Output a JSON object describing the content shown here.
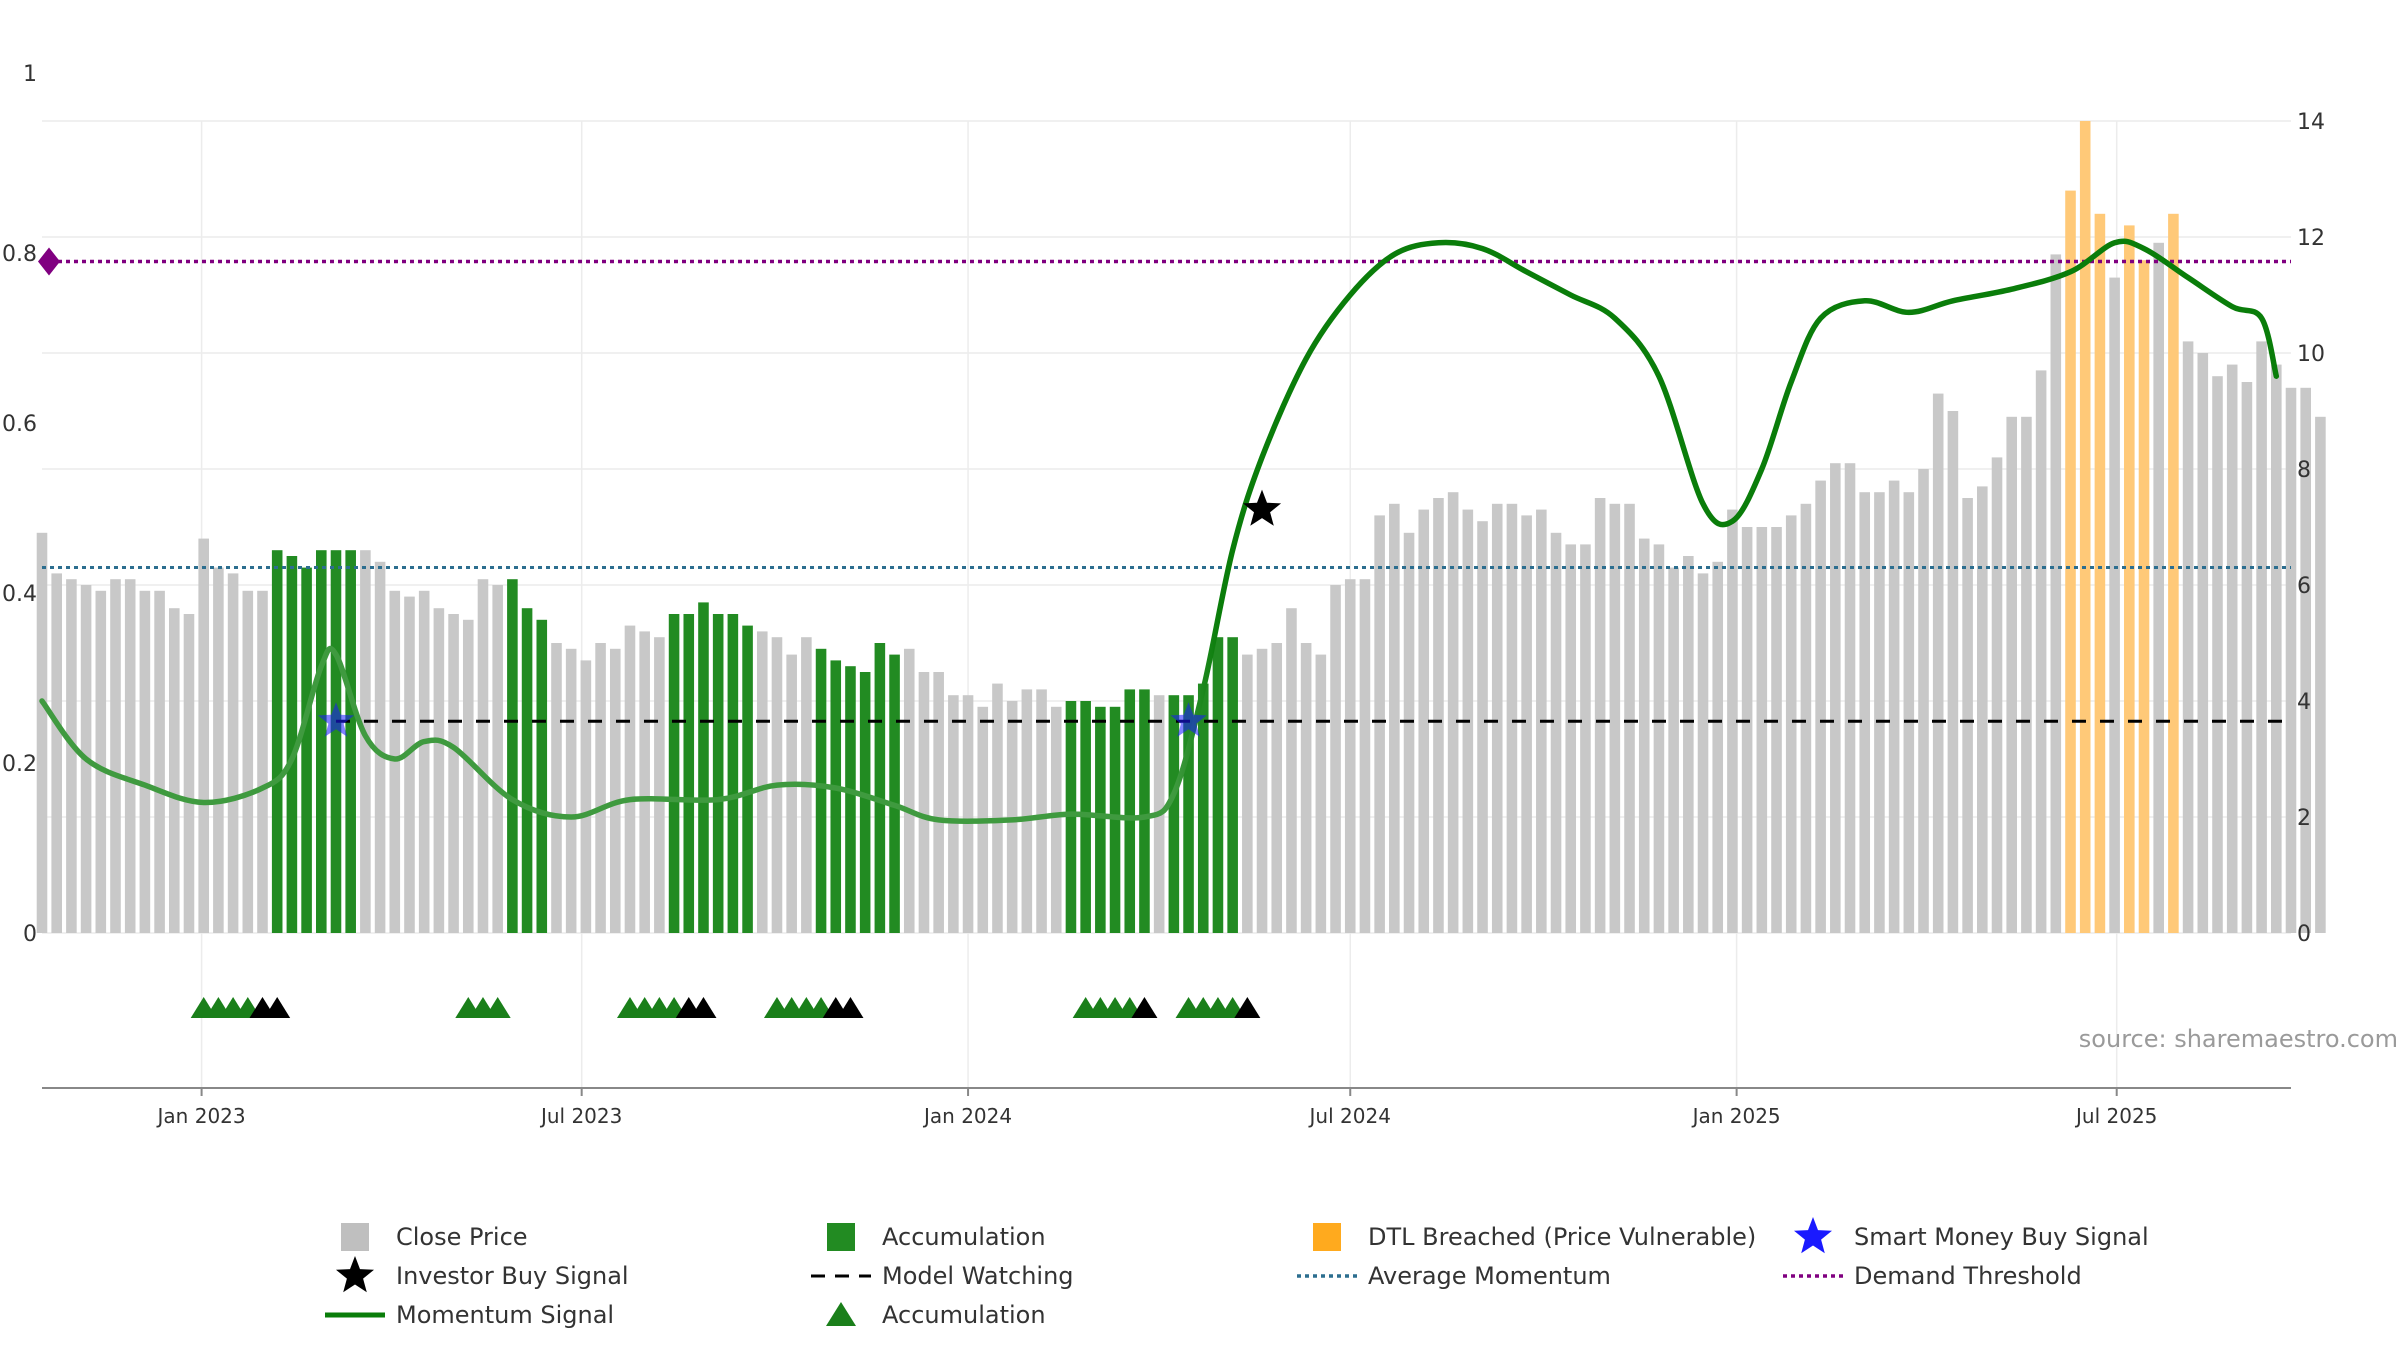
{
  "chart_data": {
    "type": "bar",
    "source_note": "source: sharemaestro.com",
    "x_axis": {
      "type": "date",
      "range": [
        "2022-10-17",
        "2025-09-22"
      ],
      "tick_labels": [
        "Jan 2023",
        "Jul 2023",
        "Jan 2024",
        "Jul 2024",
        "Jan 2025",
        "Jul 2025"
      ],
      "ticks": [
        "2023-01-01",
        "2023-07-01",
        "2024-01-01",
        "2024-07-01",
        "2025-01-01",
        "2025-07-01"
      ]
    },
    "left_axis": {
      "range": [
        0,
        1
      ],
      "tick_labels": [
        "0",
        "0.2",
        "0.4",
        "0.6",
        "0.8",
        "1"
      ]
    },
    "right_axis": {
      "range": [
        0,
        14
      ],
      "tick_labels": [
        "0",
        "2",
        "4",
        "6",
        "8",
        "10",
        "12",
        "14"
      ]
    },
    "grid": true,
    "legend_position": "bottom",
    "colors": {
      "close": "#c8c8c8",
      "accumulation": "#228b22",
      "dtl": "#ffc978",
      "momentum": "#0a7d0a",
      "average": "#2c6e8f",
      "threshold": "#800080",
      "smart_money": "#1a1aff",
      "investor": "#000000",
      "model_watching": "#000000",
      "acc_triangle": "#1a7f1a",
      "acc_triangle_black": "#000000"
    },
    "legend": [
      {
        "label": "Close Price",
        "marker": "square",
        "color": "#bfbfbf"
      },
      {
        "label": "Accumulation",
        "marker": "square",
        "color": "#228b22"
      },
      {
        "label": "DTL Breached (Price Vulnerable)",
        "marker": "square",
        "color": "#ffaa1e"
      },
      {
        "label": "Smart Money Buy Signal",
        "marker": "star",
        "color": "#1a1aff"
      },
      {
        "label": "Investor Buy Signal",
        "marker": "star",
        "color": "#000000"
      },
      {
        "label": "Model Watching",
        "marker": "dash",
        "color": "#000000"
      },
      {
        "label": "Average Momentum",
        "marker": "dot",
        "color": "#2c6e8f"
      },
      {
        "label": "Demand Threshold",
        "marker": "dot",
        "color": "#800080"
      },
      {
        "label": "Momentum Signal",
        "marker": "line",
        "color": "#0a7d0a"
      },
      {
        "label": "Accumulation",
        "marker": "triangle",
        "color": "#1a7f1a"
      }
    ],
    "series": [
      {
        "name": "Close Price",
        "axis": "right",
        "start_date": "2022-10-17",
        "step_days": 7,
        "values": [
          6.9,
          6.2,
          6.1,
          6.0,
          5.9,
          6.1,
          6.1,
          5.9,
          5.9,
          5.6,
          5.5,
          6.8,
          6.3,
          6.2,
          5.9,
          5.9,
          6.6,
          6.5,
          6.3,
          6.6,
          6.6,
          6.6,
          6.6,
          6.4,
          5.9,
          5.8,
          5.9,
          5.6,
          5.5,
          5.4,
          6.1,
          6.0,
          6.1,
          5.6,
          5.4,
          5.0,
          4.9,
          4.7,
          5.0,
          4.9,
          5.3,
          5.2,
          5.1,
          5.5,
          5.5,
          5.7,
          5.5,
          5.5,
          5.3,
          5.2,
          5.1,
          4.8,
          5.1,
          4.9,
          4.7,
          4.6,
          4.5,
          5.0,
          4.8,
          4.9,
          4.5,
          4.5,
          4.1,
          4.1,
          3.9,
          4.3,
          4.0,
          4.2,
          4.2,
          3.9,
          4.0,
          4.0,
          3.9,
          3.9,
          4.2,
          4.2,
          4.1,
          4.1,
          4.1,
          4.3,
          5.1,
          5.1,
          4.8,
          4.9,
          5.0,
          5.6,
          5.0,
          4.8,
          6.0,
          6.1,
          6.1,
          7.2,
          7.4,
          6.9,
          7.3,
          7.5,
          7.6,
          7.3,
          7.1,
          7.4,
          7.4,
          7.2,
          7.3,
          6.9,
          6.7,
          6.7,
          7.5,
          7.4,
          7.4,
          6.8,
          6.7,
          6.3,
          6.5,
          6.2,
          6.4,
          7.3,
          7.0,
          7.0,
          7.0,
          7.2,
          7.4,
          7.8,
          8.1,
          8.1,
          7.6,
          7.6,
          7.8,
          7.6,
          8.0,
          9.3,
          9.0,
          7.5,
          7.7,
          8.2,
          8.9,
          8.9,
          9.7,
          11.7,
          12.8,
          14.0,
          12.4,
          11.3,
          12.2,
          11.6,
          11.9,
          12.4,
          10.2,
          10.0,
          9.6,
          9.8,
          9.5,
          10.2,
          9.8,
          9.4,
          9.4,
          8.9
        ]
      },
      {
        "name": "Accumulation",
        "axis": "right",
        "ranges_inclusive_bar_index": [
          [
            16,
            21
          ],
          [
            32,
            34
          ],
          [
            43,
            48
          ],
          [
            53,
            58
          ],
          [
            70,
            75
          ],
          [
            77,
            81
          ]
        ]
      },
      {
        "name": "DTL Breached (Price Vulnerable)",
        "axis": "right",
        "ranges_inclusive_bar_index": [
          [
            138,
            140
          ],
          [
            142,
            143
          ],
          [
            145,
            145
          ]
        ]
      },
      {
        "name": "Momentum Signal",
        "axis": "right",
        "points": [
          [
            "2022-10-17",
            4.0
          ],
          [
            "2022-11-07",
            3.0
          ],
          [
            "2022-12-05",
            2.55
          ],
          [
            "2023-01-02",
            2.25
          ],
          [
            "2023-01-30",
            2.5
          ],
          [
            "2023-02-13",
            3.0
          ],
          [
            "2023-02-27",
            4.6
          ],
          [
            "2023-03-06",
            4.8
          ],
          [
            "2023-03-20",
            3.4
          ],
          [
            "2023-04-03",
            3.0
          ],
          [
            "2023-04-17",
            3.3
          ],
          [
            "2023-05-01",
            3.2
          ],
          [
            "2023-05-29",
            2.3
          ],
          [
            "2023-06-26",
            2.0
          ],
          [
            "2023-07-24",
            2.3
          ],
          [
            "2023-09-04",
            2.3
          ],
          [
            "2023-10-02",
            2.55
          ],
          [
            "2023-10-30",
            2.5
          ],
          [
            "2023-11-27",
            2.2
          ],
          [
            "2023-12-18",
            1.95
          ],
          [
            "2024-01-22",
            1.95
          ],
          [
            "2024-02-19",
            2.05
          ],
          [
            "2024-03-25",
            2.0
          ],
          [
            "2024-04-08",
            2.4
          ],
          [
            "2024-04-22",
            4.2
          ],
          [
            "2024-05-06",
            6.6
          ],
          [
            "2024-05-20",
            8.2
          ],
          [
            "2024-06-10",
            9.9
          ],
          [
            "2024-07-01",
            11.0
          ],
          [
            "2024-07-22",
            11.7
          ],
          [
            "2024-08-12",
            11.9
          ],
          [
            "2024-09-02",
            11.8
          ],
          [
            "2024-09-23",
            11.4
          ],
          [
            "2024-10-14",
            11.0
          ],
          [
            "2024-11-04",
            10.6
          ],
          [
            "2024-11-25",
            9.6
          ],
          [
            "2024-12-16",
            7.4
          ],
          [
            "2024-12-30",
            7.1
          ],
          [
            "2025-01-13",
            8.0
          ],
          [
            "2025-01-27",
            9.5
          ],
          [
            "2025-02-10",
            10.6
          ],
          [
            "2025-03-03",
            10.9
          ],
          [
            "2025-03-24",
            10.7
          ],
          [
            "2025-04-14",
            10.9
          ],
          [
            "2025-05-12",
            11.1
          ],
          [
            "2025-06-09",
            11.4
          ],
          [
            "2025-06-30",
            11.9
          ],
          [
            "2025-07-14",
            11.8
          ],
          [
            "2025-08-04",
            11.3
          ],
          [
            "2025-08-25",
            10.8
          ],
          [
            "2025-09-08",
            10.6
          ],
          [
            "2025-09-15",
            9.6
          ]
        ]
      },
      {
        "name": "Average Momentum",
        "axis": "left",
        "value": 0.43
      },
      {
        "name": "Demand Threshold",
        "axis": "left",
        "value": 0.79
      },
      {
        "name": "Model Watching",
        "axis": "right",
        "value": 3.65,
        "from": "2023-03-06"
      },
      {
        "name": "Smart Money Buy Signal",
        "points": [
          [
            "2023-03-06",
            3.65
          ],
          [
            "2024-04-15",
            3.65
          ]
        ]
      },
      {
        "name": "Investor Buy Signal",
        "points": [
          [
            "2024-05-20",
            7.3
          ]
        ]
      }
    ],
    "accumulation_triangles": [
      {
        "dates": [
          "2023-01-02",
          "2023-01-09",
          "2023-01-16",
          "2023-01-23"
        ],
        "color": "green"
      },
      {
        "dates": [
          "2023-01-30",
          "2023-02-06"
        ],
        "color": "black"
      },
      {
        "dates": [
          "2023-05-08",
          "2023-05-15",
          "2023-05-22"
        ],
        "color": "green"
      },
      {
        "dates": [
          "2023-07-24",
          "2023-07-31",
          "2023-08-07",
          "2023-08-14"
        ],
        "color": "green"
      },
      {
        "dates": [
          "2023-08-21",
          "2023-08-28"
        ],
        "color": "black"
      },
      {
        "dates": [
          "2023-10-02",
          "2023-10-09",
          "2023-10-16",
          "2023-10-23"
        ],
        "color": "green"
      },
      {
        "dates": [
          "2023-10-30",
          "2023-11-06"
        ],
        "color": "black"
      },
      {
        "dates": [
          "2024-02-26",
          "2024-03-04",
          "2024-03-11",
          "2024-03-18"
        ],
        "color": "green"
      },
      {
        "dates": [
          "2024-03-25"
        ],
        "color": "black"
      },
      {
        "dates": [
          "2024-04-15",
          "2024-04-22",
          "2024-04-29",
          "2024-05-06"
        ],
        "color": "green"
      },
      {
        "dates": [
          "2024-05-13"
        ],
        "color": "black"
      }
    ],
    "threshold_marker": {
      "date": "2022-10-17",
      "value": 0.79,
      "shape": "diamond"
    }
  }
}
